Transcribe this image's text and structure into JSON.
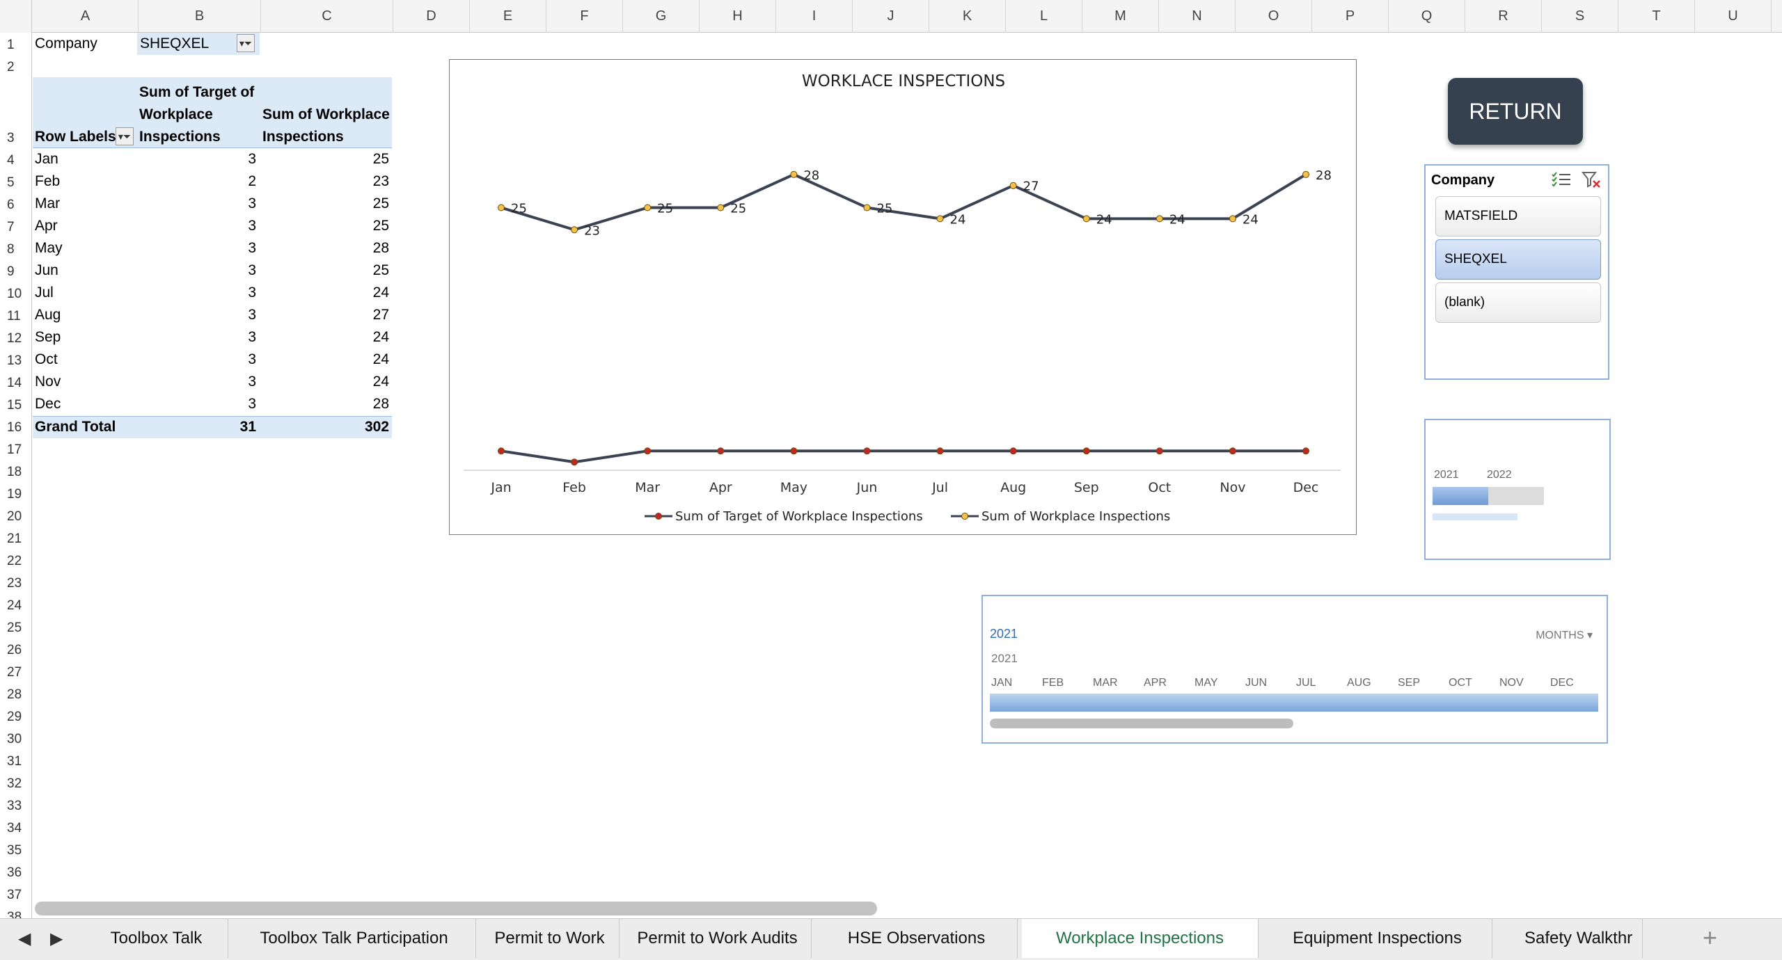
{
  "columns": [
    "A",
    "B",
    "C",
    "D",
    "E",
    "F",
    "G",
    "H",
    "I",
    "J",
    "K",
    "L",
    "M",
    "N",
    "O",
    "P",
    "Q",
    "R",
    "S",
    "T",
    "U"
  ],
  "rows": [
    "1",
    "2",
    "3",
    "4",
    "5",
    "6",
    "7",
    "8",
    "9",
    "10",
    "11",
    "12",
    "13",
    "14",
    "15",
    "16",
    "17",
    "18",
    "19",
    "20",
    "21",
    "22",
    "23",
    "24",
    "25",
    "26",
    "27",
    "28",
    "29",
    "30",
    "31",
    "32",
    "33",
    "34",
    "35",
    "36",
    "37",
    "38"
  ],
  "filter": {
    "label": "Company",
    "value": "SHEQXEL"
  },
  "pivot": {
    "row_labels": "Row Labels",
    "col_b_header": [
      "Sum of Target of",
      "Workplace",
      "Inspections"
    ],
    "col_c_header": [
      "Sum of Workplace",
      "Inspections"
    ],
    "rows": [
      {
        "month": "Jan",
        "target": "3",
        "actual": "25"
      },
      {
        "month": "Feb",
        "target": "2",
        "actual": "23"
      },
      {
        "month": "Mar",
        "target": "3",
        "actual": "25"
      },
      {
        "month": "Apr",
        "target": "3",
        "actual": "25"
      },
      {
        "month": "May",
        "target": "3",
        "actual": "28"
      },
      {
        "month": "Jun",
        "target": "3",
        "actual": "25"
      },
      {
        "month": "Jul",
        "target": "3",
        "actual": "24"
      },
      {
        "month": "Aug",
        "target": "3",
        "actual": "27"
      },
      {
        "month": "Sep",
        "target": "3",
        "actual": "24"
      },
      {
        "month": "Oct",
        "target": "3",
        "actual": "24"
      },
      {
        "month": "Nov",
        "target": "3",
        "actual": "24"
      },
      {
        "month": "Dec",
        "target": "3",
        "actual": "28"
      }
    ],
    "total": {
      "label": "Grand Total",
      "target": "31",
      "actual": "302"
    }
  },
  "chart_data": {
    "type": "line",
    "title": "WORKLACE INSPECTIONS",
    "categories": [
      "Jan",
      "Feb",
      "Mar",
      "Apr",
      "May",
      "Jun",
      "Jul",
      "Aug",
      "Sep",
      "Oct",
      "Nov",
      "Dec"
    ],
    "series": [
      {
        "name": "Sum of Target of Workplace Inspections",
        "values": [
          3,
          2,
          3,
          3,
          3,
          3,
          3,
          3,
          3,
          3,
          3,
          3
        ],
        "color": "#c0272d",
        "labels": false
      },
      {
        "name": "Sum of Workplace Inspections",
        "values": [
          25,
          23,
          25,
          25,
          28,
          25,
          24,
          27,
          24,
          24,
          24,
          28
        ],
        "color": "#f2c14e",
        "labels": true
      }
    ],
    "line_color": "#3b4252",
    "legend": "bottom"
  },
  "return_button": {
    "label": "RETURN"
  },
  "slicer": {
    "title": "Company",
    "items": [
      {
        "label": "MATSFIELD",
        "selected": false
      },
      {
        "label": "SHEQXEL",
        "selected": true
      },
      {
        "label": "(blank)",
        "selected": false
      }
    ]
  },
  "timeline_small": {
    "years": [
      "2021",
      "2022"
    ]
  },
  "timeline": {
    "heading": "2021",
    "period": "MONTHS",
    "year_row": "2021",
    "months": [
      "JAN",
      "FEB",
      "MAR",
      "APR",
      "MAY",
      "JUN",
      "JUL",
      "AUG",
      "SEP",
      "OCT",
      "NOV",
      "DEC"
    ]
  },
  "tabs": [
    {
      "label": "Toolbox Talk",
      "active": false
    },
    {
      "label": "Toolbox Talk Participation",
      "active": false
    },
    {
      "label": "Permit to Work",
      "active": false
    },
    {
      "label": "Permit to Work Audits",
      "active": false
    },
    {
      "label": "HSE Observations",
      "active": false
    },
    {
      "label": "Workplace Inspections",
      "active": true
    },
    {
      "label": "Equipment Inspections",
      "active": false
    },
    {
      "label": "Safety Walkthr",
      "active": false
    }
  ],
  "colors": {
    "accent": "#217346",
    "pivot_header": "#dce9f7",
    "button": "#36414f"
  }
}
